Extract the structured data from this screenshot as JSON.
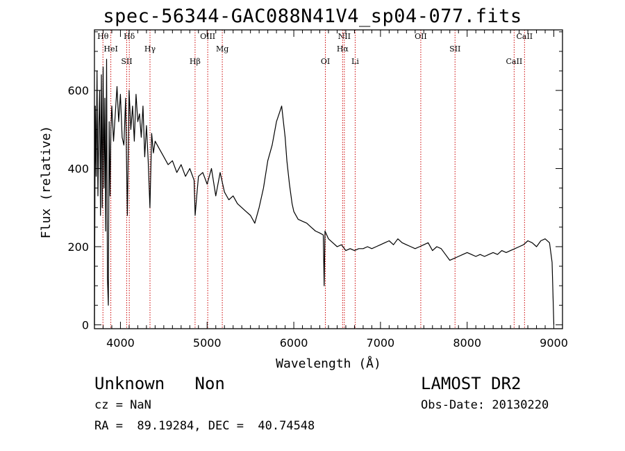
{
  "chart_data": {
    "type": "line",
    "title": "spec-56344-GAC088N41V4_sp04-077.fits",
    "xlabel": "Wavelength (Å)",
    "ylabel": "Flux (relative)",
    "xlim": [
      3700,
      9100
    ],
    "ylim": [
      -10,
      755
    ],
    "xticks": [
      4000,
      5000,
      6000,
      7000,
      8000,
      9000
    ],
    "yticks": [
      0,
      200,
      400,
      600
    ],
    "line_color": "#000000",
    "marker_color": "#cc0000",
    "grid": false,
    "series": [
      {
        "x": [
          3700,
          3710,
          3720,
          3730,
          3740,
          3750,
          3760,
          3770,
          3780,
          3790,
          3800,
          3810,
          3820,
          3830,
          3840,
          3850,
          3860,
          3870,
          3880,
          3890,
          3900,
          3920,
          3940,
          3960,
          3980,
          4000,
          4020,
          4040,
          4060,
          4080,
          4100,
          4120,
          4140,
          4160,
          4180,
          4200,
          4220,
          4240,
          4260,
          4280,
          4300,
          4320,
          4340,
          4360,
          4380,
          4400,
          4450,
          4500,
          4550,
          4600,
          4650,
          4700,
          4750,
          4800,
          4850,
          4862,
          4880,
          4900,
          4950,
          5000,
          5050,
          5100,
          5150,
          5200,
          5250,
          5300,
          5350,
          5400,
          5450,
          5500,
          5550,
          5600,
          5650,
          5700,
          5750,
          5800,
          5830,
          5860,
          5880,
          5900,
          5920,
          5950,
          5980,
          6000,
          6050,
          6100,
          6150,
          6200,
          6250,
          6300,
          6340,
          6350,
          6360,
          6400,
          6450,
          6500,
          6550,
          6600,
          6650,
          6700,
          6750,
          6800,
          6850,
          6900,
          6950,
          7000,
          7050,
          7100,
          7150,
          7200,
          7250,
          7300,
          7350,
          7400,
          7450,
          7500,
          7550,
          7600,
          7650,
          7700,
          7750,
          7800,
          7850,
          7900,
          7950,
          8000,
          8050,
          8100,
          8150,
          8200,
          8250,
          8300,
          8350,
          8400,
          8450,
          8500,
          8550,
          8600,
          8650,
          8700,
          8750,
          8800,
          8850,
          8900,
          8950,
          8980,
          9000
        ],
        "y": [
          0,
          560,
          380,
          650,
          330,
          500,
          600,
          280,
          640,
          300,
          660,
          350,
          580,
          240,
          680,
          120,
          50,
          520,
          330,
          500,
          560,
          470,
          540,
          610,
          520,
          590,
          480,
          460,
          580,
          280,
          600,
          500,
          560,
          470,
          590,
          520,
          540,
          480,
          560,
          430,
          510,
          420,
          300,
          490,
          440,
          470,
          450,
          430,
          410,
          420,
          390,
          410,
          380,
          400,
          370,
          280,
          330,
          380,
          390,
          360,
          400,
          330,
          390,
          340,
          320,
          330,
          310,
          300,
          290,
          280,
          260,
          300,
          350,
          420,
          460,
          520,
          540,
          560,
          520,
          480,
          420,
          360,
          310,
          290,
          270,
          265,
          260,
          250,
          240,
          235,
          230,
          100,
          240,
          220,
          210,
          200,
          205,
          190,
          195,
          190,
          195,
          195,
          200,
          195,
          200,
          205,
          210,
          215,
          205,
          220,
          210,
          205,
          200,
          195,
          200,
          205,
          210,
          190,
          200,
          195,
          180,
          165,
          170,
          175,
          180,
          185,
          180,
          175,
          180,
          175,
          180,
          185,
          180,
          190,
          185,
          190,
          195,
          200,
          205,
          215,
          210,
          200,
          215,
          220,
          210,
          160,
          0
        ]
      }
    ],
    "line_markers": [
      {
        "label": "Hθ",
        "wavelength": 3798
      },
      {
        "label": "HeI",
        "wavelength": 3889
      },
      {
        "label": "SII",
        "wavelength": 4072
      },
      {
        "label": "Hδ",
        "wavelength": 4102
      },
      {
        "label": "Hγ",
        "wavelength": 4341
      },
      {
        "label": "Hβ",
        "wavelength": 4861
      },
      {
        "label": "OIII",
        "wavelength": 5007
      },
      {
        "label": "Mg",
        "wavelength": 5175
      },
      {
        "label": "OI",
        "wavelength": 6364
      },
      {
        "label": "NII",
        "wavelength": 6583
      },
      {
        "label": "Hα",
        "wavelength": 6563
      },
      {
        "label": "Li",
        "wavelength": 6708
      },
      {
        "label": "OII",
        "wavelength": 7465
      },
      {
        "label": "SII",
        "wavelength": 7860
      },
      {
        "label": "CaII",
        "wavelength": 8542
      },
      {
        "label": "CaII",
        "wavelength": 8662
      }
    ]
  },
  "info": {
    "class_text": "Unknown   Non",
    "survey": "LAMOST DR2",
    "cz": "cz = NaN",
    "obs_date": "Obs-Date: 20130220",
    "radec": "RA =  89.19284, DEC =  40.74548"
  }
}
